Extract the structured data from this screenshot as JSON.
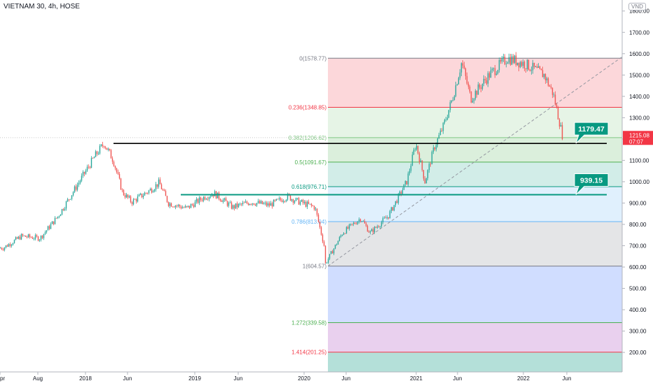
{
  "symbol_title": "VIETNAM 30, 4h, HOSE",
  "currency": "VND",
  "colors": {
    "candle_up": "#26a69a",
    "candle_down": "#ef5350",
    "level_1179": "#000000",
    "level_939": "#089981",
    "callout": "#089981",
    "price_badge": "#f23645"
  },
  "chart_data": {
    "type": "candlestick",
    "title": "VIETNAM 30, 4h, HOSE",
    "ylabel": "VND",
    "ylim": [
      140,
      1830
    ],
    "y_ticks": [
      "1800.00",
      "1700.00",
      "1600.00",
      "1500.00",
      "1400.00",
      "1300.00",
      "1200.00",
      "1100.00",
      "1000.00",
      "900.00",
      "800.00",
      "700.00",
      "600.00",
      "500.00",
      "400.00",
      "300.00",
      "200.00"
    ],
    "x_ticks": [
      "pr",
      "Aug",
      "2018",
      "Jun",
      "2019",
      "Jun",
      "2020",
      "Jun",
      "2021",
      "Jun",
      "2022",
      "Jun"
    ],
    "price_path": [
      [
        "2017-04",
        690
      ],
      [
        "2017-06",
        745
      ],
      [
        "2017-08",
        735
      ],
      [
        "2017-10",
        840
      ],
      [
        "2017-12",
        980
      ],
      [
        "2018-02",
        1120
      ],
      [
        "2018-03",
        1180
      ],
      [
        "2018-04",
        1100
      ],
      [
        "2018-05",
        950
      ],
      [
        "2018-06",
        905
      ],
      [
        "2018-08",
        960
      ],
      [
        "2018-09",
        995
      ],
      [
        "2018-10",
        900
      ],
      [
        "2018-12",
        875
      ],
      [
        "2019-02",
        930
      ],
      [
        "2019-03",
        945
      ],
      [
        "2019-05",
        880
      ],
      [
        "2019-07",
        905
      ],
      [
        "2019-09",
        890
      ],
      [
        "2019-11",
        930
      ],
      [
        "2019-12",
        910
      ],
      [
        "2020-02",
        880
      ],
      [
        "2020-03",
        700
      ],
      [
        "2020-03",
        605
      ],
      [
        "2020-05",
        760
      ],
      [
        "2020-07",
        830
      ],
      [
        "2020-08",
        760
      ],
      [
        "2020-10",
        840
      ],
      [
        "2020-12",
        1000
      ],
      [
        "2021-01",
        1180
      ],
      [
        "2021-02",
        1000
      ],
      [
        "2021-03",
        1160
      ],
      [
        "2021-04",
        1260
      ],
      [
        "2021-05",
        1390
      ],
      [
        "2021-06",
        1560
      ],
      [
        "2021-07",
        1390
      ],
      [
        "2021-09",
        1500
      ],
      [
        "2021-11",
        1580
      ],
      [
        "2022-01",
        1550
      ],
      [
        "2022-03",
        1500
      ],
      [
        "2022-04",
        1410
      ],
      [
        "2022-05",
        1215
      ]
    ],
    "fibonacci": {
      "anchor_low": 604.57,
      "anchor_high": 1578.77,
      "levels": [
        {
          "label": "0(1578.77)",
          "price": 1578.77
        },
        {
          "label": "0.236(1348.85)",
          "price": 1348.85
        },
        {
          "label": "0.382(1206.62)",
          "price": 1206.62
        },
        {
          "label": "0.5(1091.67)",
          "price": 1091.67
        },
        {
          "label": "0.618(976.71)",
          "price": 976.71
        },
        {
          "label": "0.786(813.04)",
          "price": 813.04
        },
        {
          "label": "1(604.57)",
          "price": 604.57
        },
        {
          "label": "1.272(339.58)",
          "price": 339.58
        },
        {
          "label": "1.414(201.25)",
          "price": 201.25
        }
      ]
    },
    "horizontal_levels": [
      {
        "label": "1179.47",
        "price": 1179.47
      },
      {
        "label": "939.15",
        "price": 939.15
      }
    ],
    "current_price": {
      "value": "1215.08",
      "countdown": "07:07"
    },
    "grid": false
  }
}
